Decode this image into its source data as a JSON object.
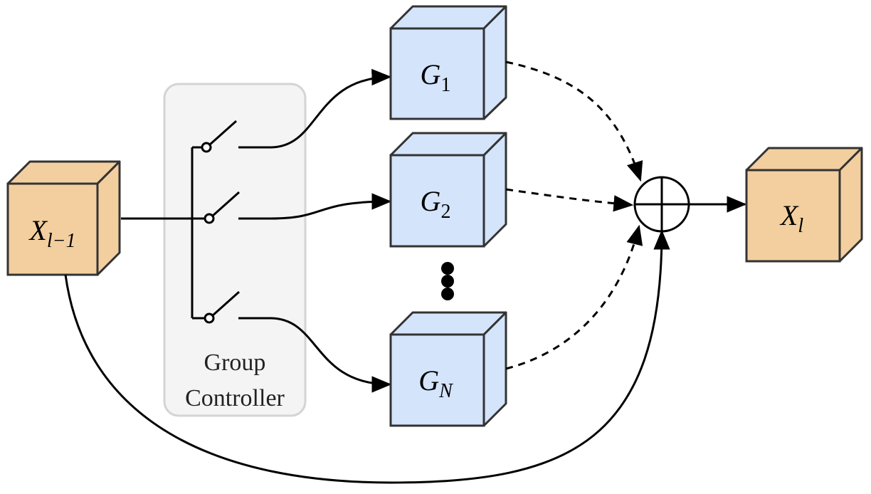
{
  "input_block": {
    "main": "X",
    "subscript": "l−1"
  },
  "output_block": {
    "main": "X",
    "subscript": "l"
  },
  "controller": {
    "label_line1": "Group",
    "label_line2": "Controller"
  },
  "groups": [
    {
      "main": "G",
      "subscript": "1"
    },
    {
      "main": "G",
      "subscript": "2"
    },
    {
      "main": "G",
      "subscript": "N"
    }
  ],
  "colors": {
    "input_fill": "#f3cf9f",
    "output_fill": "#f3cf9f",
    "group_fill": "#d4e4fb",
    "controller_fill": "#f4f4f4",
    "controller_stroke": "#d4d4d4",
    "stroke": "#333333"
  },
  "icons": {
    "sum_node": "circled-plus",
    "ellipsis": "vertical-dots"
  }
}
